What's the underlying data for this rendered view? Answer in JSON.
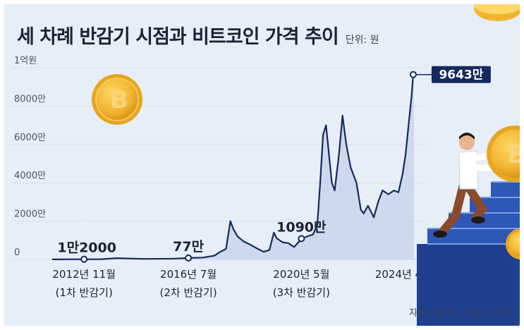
{
  "header": {
    "title": "세 차례 반감기 시점과 비트코인 가격 추이",
    "unit": "단위: 원"
  },
  "source": "자료=업비트, 빗썸, 코인마",
  "chart_data": {
    "type": "area",
    "title": "세 차례 반감기 시점과 비트코인 가격 추이",
    "unit_label": "단위: 원",
    "yticks": [
      "1억원",
      "8000만",
      "6000만",
      "4000만",
      "2000만",
      "0"
    ],
    "ytick_values": [
      100000000,
      80000000,
      60000000,
      40000000,
      20000000,
      0
    ],
    "ylim": [
      0,
      100000000
    ],
    "xlim": [
      2011.8,
      2024.7
    ],
    "grid": true,
    "x_ticks": [
      {
        "x": 2012.9,
        "label": "2012년 11월",
        "sub": "(1차 반감기)"
      },
      {
        "x": 2016.5,
        "label": "2016년 7월",
        "sub": "(2차 반감기)"
      },
      {
        "x": 2020.4,
        "label": "2020년 5월",
        "sub": "(3차 반감기)"
      },
      {
        "x": 2024.26,
        "label": "2024년 4월 4일",
        "sub": ""
      }
    ],
    "data_labels": [
      {
        "x": 2012.9,
        "y": 120000,
        "label": "1만2000"
      },
      {
        "x": 2016.5,
        "y": 770000,
        "label": "77만"
      },
      {
        "x": 2020.4,
        "y": 10900000,
        "label": "1090만"
      },
      {
        "x": 2024.26,
        "y": 96430000,
        "label": "9643만"
      }
    ],
    "series": [
      {
        "x": [
          2011.8,
          2012.9,
          2013.5,
          2014.0,
          2015.0,
          2016.0,
          2016.5,
          2017.0,
          2017.4,
          2017.6,
          2017.8,
          2017.95,
          2018.05,
          2018.2,
          2018.4,
          2018.6,
          2018.9,
          2019.1,
          2019.3,
          2019.45,
          2019.55,
          2019.75,
          2019.95,
          2020.15,
          2020.3,
          2020.4,
          2020.6,
          2020.8,
          2020.95,
          2021.05,
          2021.15,
          2021.25,
          2021.35,
          2021.45,
          2021.55,
          2021.7,
          2021.82,
          2021.95,
          2022.1,
          2022.3,
          2022.45,
          2022.55,
          2022.7,
          2022.9,
          2023.05,
          2023.2,
          2023.4,
          2023.6,
          2023.75,
          2023.9,
          2024.0,
          2024.1,
          2024.2,
          2024.26
        ],
        "values": [
          40000,
          120000,
          150000,
          700000,
          300000,
          450000,
          770000,
          1000000,
          2000000,
          4000000,
          5500000,
          20000000,
          16000000,
          12000000,
          9500000,
          8000000,
          5500000,
          4000000,
          5000000,
          14000000,
          11000000,
          9000000,
          8500000,
          6500000,
          9000000,
          10900000,
          12000000,
          13000000,
          18000000,
          40000000,
          65000000,
          70000000,
          55000000,
          40000000,
          36000000,
          55000000,
          75000000,
          60000000,
          48000000,
          40000000,
          26000000,
          24000000,
          28000000,
          22000000,
          30000000,
          36000000,
          34000000,
          36000000,
          35000000,
          45000000,
          55000000,
          70000000,
          85000000,
          96430000
        ]
      }
    ]
  }
}
